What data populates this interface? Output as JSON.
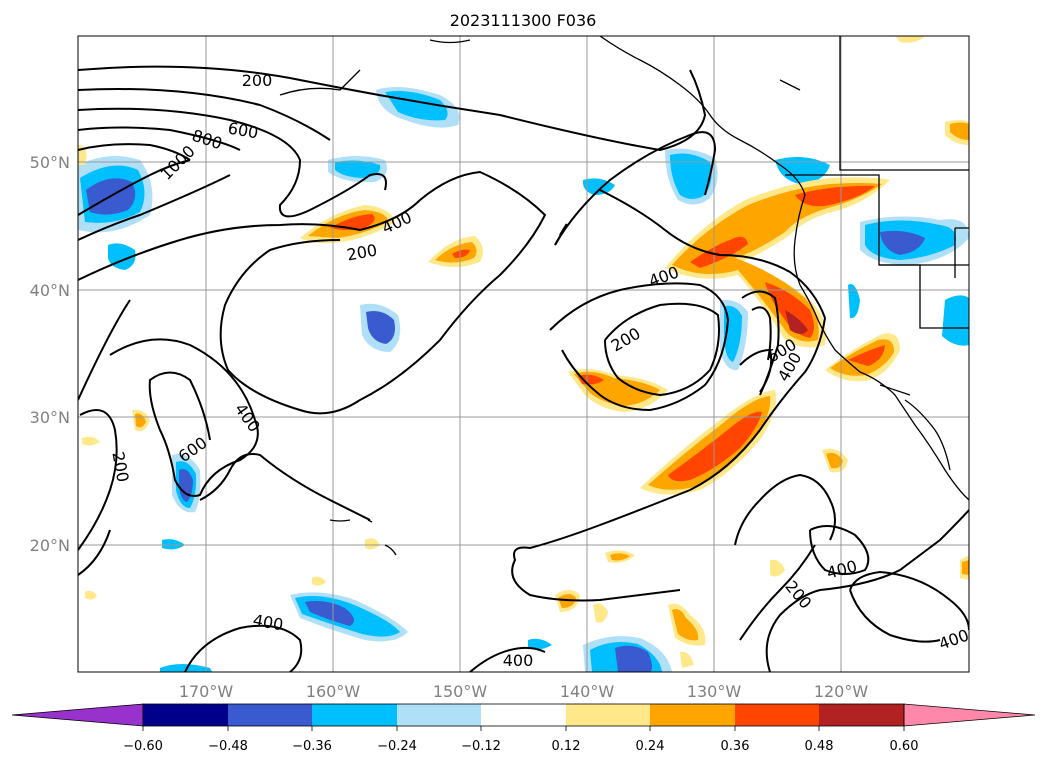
{
  "title": "2023111300 F036",
  "lat_labels": [
    "50°N",
    "40°N",
    "30°N",
    "20°N"
  ],
  "lon_labels": [
    "170°W",
    "160°W",
    "150°W",
    "140°W",
    "130°W",
    "120°W"
  ],
  "colorbar": {
    "ticks": [
      "−0.60",
      "−0.48",
      "−0.36",
      "−0.24",
      "−0.12",
      "0.12",
      "0.24",
      "0.36",
      "0.48",
      "0.60"
    ],
    "colors": [
      "#9932cc",
      "#00008b",
      "#3a5bcf",
      "#00bfff",
      "#b0e0f8",
      "#ffffff",
      "#ffe88a",
      "#ffa500",
      "#ff4500",
      "#b22222",
      "#ff88aa"
    ]
  },
  "contour_labels": [
    {
      "text": "200",
      "id": "c200a"
    },
    {
      "text": "800",
      "id": "c800"
    },
    {
      "text": "600",
      "id": "c600a"
    },
    {
      "text": "1000",
      "id": "c1000"
    },
    {
      "text": "400",
      "id": "c400a"
    },
    {
      "text": "200",
      "id": "c200b"
    },
    {
      "text": "400",
      "id": "c400b"
    },
    {
      "text": "200",
      "id": "c200c"
    },
    {
      "text": "600",
      "id": "c600b"
    },
    {
      "text": "400",
      "id": "c400c"
    },
    {
      "text": "400",
      "id": "c400d"
    },
    {
      "text": "600",
      "id": "c600c"
    },
    {
      "text": "200",
      "id": "c200d"
    },
    {
      "text": "400",
      "id": "c400e"
    },
    {
      "text": "200",
      "id": "c200e"
    },
    {
      "text": "400",
      "id": "c400f"
    },
    {
      "text": "400",
      "id": "c400g"
    },
    {
      "text": "400",
      "id": "c400h"
    }
  ]
}
